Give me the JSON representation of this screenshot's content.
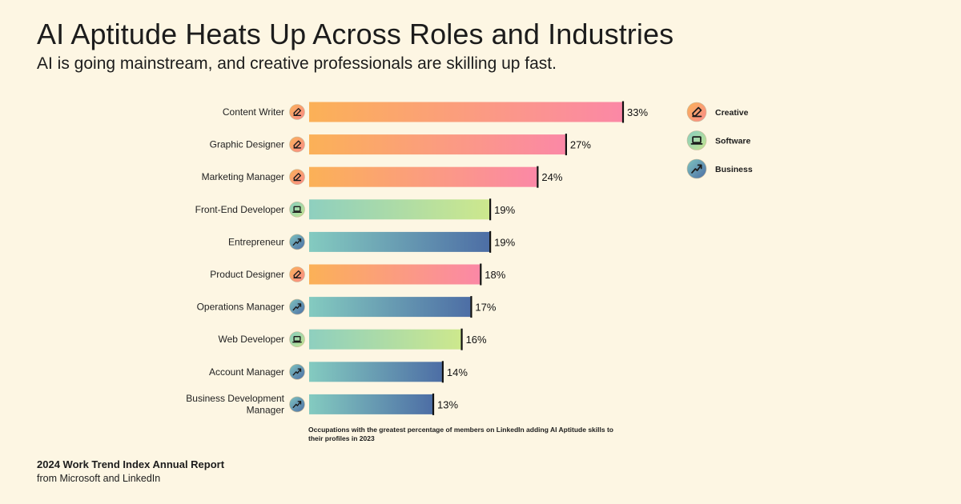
{
  "header": {
    "title": "AI Aptitude Heats Up Across Roles and Industries",
    "subtitle": "AI is going mainstream, and creative professionals are skilling up fast."
  },
  "chart_data": {
    "type": "bar",
    "orientation": "horizontal",
    "value_unit": "%",
    "xlim": [
      0,
      33
    ],
    "categories": [
      {
        "label": [
          "Content Writer"
        ],
        "value": 33,
        "group": "Creative"
      },
      {
        "label": [
          "Graphic Designer"
        ],
        "value": 27,
        "group": "Creative"
      },
      {
        "label": [
          "Marketing Manager"
        ],
        "value": 24,
        "group": "Creative"
      },
      {
        "label": [
          "Front-End Developer"
        ],
        "value": 19,
        "group": "Software"
      },
      {
        "label": [
          "Entrepreneur"
        ],
        "value": 19,
        "group": "Business"
      },
      {
        "label": [
          "Product Designer"
        ],
        "value": 18,
        "group": "Creative"
      },
      {
        "label": [
          "Operations Manager"
        ],
        "value": 17,
        "group": "Business"
      },
      {
        "label": [
          "Web Developer"
        ],
        "value": 16,
        "group": "Software"
      },
      {
        "label": [
          "Account Manager"
        ],
        "value": 14,
        "group": "Business"
      },
      {
        "label": [
          "Business Development",
          "Manager"
        ],
        "value": 13,
        "group": "Business"
      }
    ],
    "legend": [
      {
        "name": "Creative",
        "icon": "pencil-icon",
        "color_start": "#fbb157",
        "color_end": "#fb88a6"
      },
      {
        "name": "Software",
        "icon": "laptop-icon",
        "color_start": "#8ecfbf",
        "color_end": "#cde88d"
      },
      {
        "name": "Business",
        "icon": "trend-up-icon",
        "color_start": "#84cbc0",
        "color_end": "#4d6ea5"
      }
    ],
    "legend_position": "top-right",
    "footnote": "Occupations with the greatest percentage of members on LinkedIn adding AI Aptitude skills to their profiles in 2023"
  },
  "footer": {
    "report": "2024 Work Trend Index Annual Report",
    "source": "from Microsoft and LinkedIn"
  }
}
